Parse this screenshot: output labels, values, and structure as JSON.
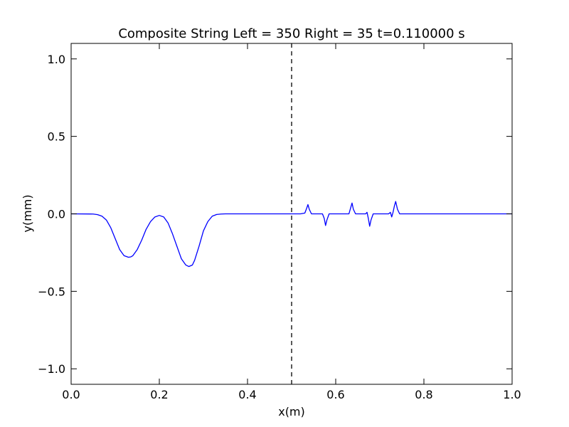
{
  "chart_data": {
    "type": "line",
    "title": "Composite String Left = 350 Right = 35  t=0.110000 s",
    "xlabel": "x(m)",
    "ylabel": "y(mm)",
    "xlim": [
      0.0,
      1.0
    ],
    "ylim": [
      -1.1,
      1.1
    ],
    "xticks": [
      0.0,
      0.2,
      0.4,
      0.6,
      0.8,
      1.0
    ],
    "xtick_labels": [
      "0.0",
      "0.2",
      "0.4",
      "0.6",
      "0.8",
      "1.0"
    ],
    "yticks": [
      1.0,
      0.5,
      0.0,
      -0.5,
      -1.0
    ],
    "ytick_labels": [
      "1.0",
      "0.5",
      "0.0",
      "−0.5",
      "−1.0"
    ],
    "grid": false,
    "legend": "none",
    "boundary_line": {
      "x": 0.5,
      "style": "dashed",
      "color": "#000000"
    },
    "series": [
      {
        "color": "#0000ff",
        "x": [
          0.0,
          0.05,
          0.06,
          0.07,
          0.08,
          0.09,
          0.1,
          0.11,
          0.12,
          0.13,
          0.135,
          0.14,
          0.15,
          0.16,
          0.17,
          0.18,
          0.19,
          0.2,
          0.21,
          0.22,
          0.23,
          0.24,
          0.25,
          0.26,
          0.267,
          0.275,
          0.28,
          0.29,
          0.3,
          0.31,
          0.32,
          0.33,
          0.34,
          0.35,
          0.4,
          0.5,
          0.52,
          0.53,
          0.534,
          0.537,
          0.54,
          0.545,
          0.57,
          0.574,
          0.577,
          0.58,
          0.585,
          0.63,
          0.634,
          0.637,
          0.64,
          0.645,
          0.668,
          0.671,
          0.674,
          0.677,
          0.68,
          0.685,
          0.72,
          0.724,
          0.727,
          0.73,
          0.733,
          0.736,
          0.74,
          0.745,
          0.8,
          1.0
        ],
        "y": [
          0.0,
          -0.001,
          -0.005,
          -0.015,
          -0.04,
          -0.09,
          -0.16,
          -0.23,
          -0.27,
          -0.28,
          -0.278,
          -0.27,
          -0.23,
          -0.17,
          -0.1,
          -0.05,
          -0.02,
          -0.01,
          -0.02,
          -0.06,
          -0.13,
          -0.21,
          -0.29,
          -0.33,
          -0.34,
          -0.33,
          -0.3,
          -0.21,
          -0.11,
          -0.05,
          -0.015,
          -0.004,
          -0.001,
          0.0,
          0.0,
          0.0,
          0.0,
          0.005,
          0.035,
          0.06,
          0.03,
          0.0,
          0.0,
          -0.03,
          -0.075,
          -0.04,
          0.0,
          0.0,
          0.04,
          0.07,
          0.03,
          0.0,
          0.0,
          0.01,
          -0.03,
          -0.08,
          -0.04,
          0.0,
          0.0,
          0.01,
          -0.02,
          0.01,
          0.05,
          0.08,
          0.03,
          0.0,
          0.0,
          0.0
        ]
      }
    ]
  }
}
